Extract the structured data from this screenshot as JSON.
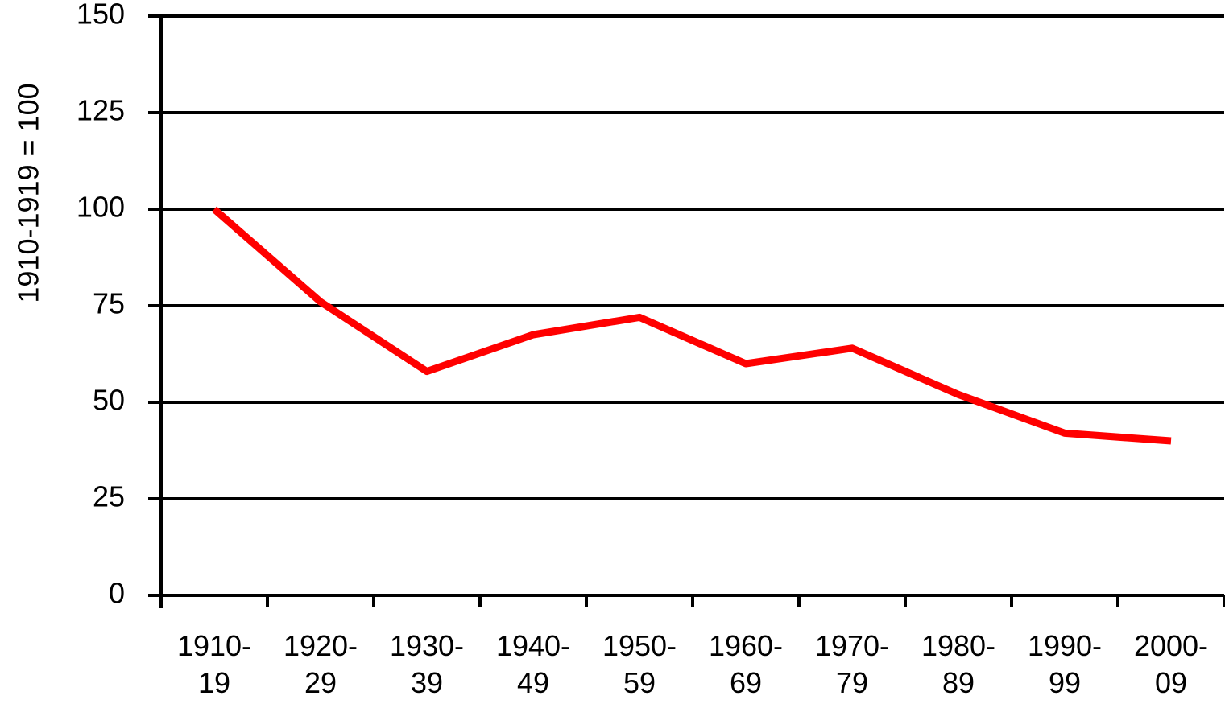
{
  "chart_data": {
    "type": "line",
    "y_label": "1910-1919 = 100",
    "categories": [
      "1910-19",
      "1920-29",
      "1930-39",
      "1940-49",
      "1950-59",
      "1960-69",
      "1970-79",
      "1980-89",
      "1990-99",
      "2000-09"
    ],
    "values": [
      100,
      76,
      58,
      67.5,
      72,
      60,
      64,
      52,
      42,
      40
    ],
    "color": "#ff0000",
    "ylim": [
      0,
      150
    ],
    "yticks": [
      0,
      25,
      50,
      75,
      100,
      125,
      150
    ],
    "grid": true
  }
}
